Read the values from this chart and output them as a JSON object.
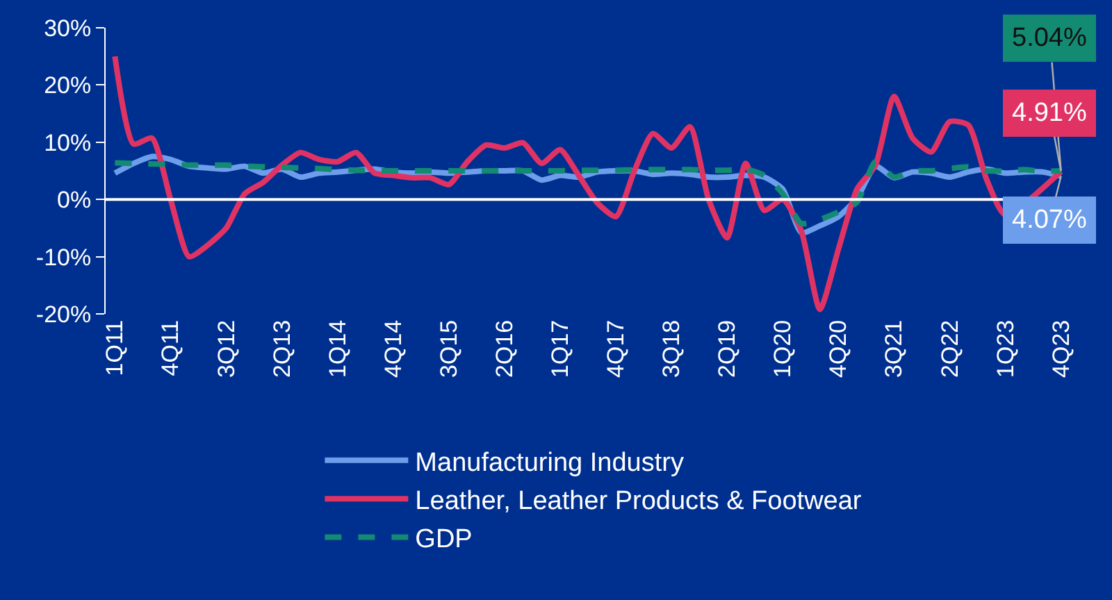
{
  "chart_data": {
    "type": "line",
    "categories": [
      "1Q11",
      null,
      null,
      "4Q11",
      null,
      null,
      "3Q12",
      null,
      null,
      "2Q13",
      null,
      null,
      "1Q14",
      null,
      null,
      "4Q14",
      null,
      null,
      "3Q15",
      null,
      null,
      "2Q16",
      null,
      null,
      "1Q17",
      null,
      null,
      "4Q17",
      null,
      null,
      "3Q18",
      null,
      null,
      "2Q19",
      null,
      null,
      "1Q20",
      null,
      null,
      "4Q20",
      null,
      null,
      "3Q21",
      null,
      null,
      "2Q22",
      null,
      null,
      "1Q23",
      null,
      null,
      "4Q23"
    ],
    "series": [
      {
        "name": "Manufacturing Industry",
        "color": "#6d9eeb",
        "line_style": "solid",
        "values": [
          4.6,
          6.3,
          7.5,
          7,
          5.8,
          5.5,
          5.3,
          5.8,
          4.6,
          5.3,
          3.9,
          4.6,
          4.8,
          5.1,
          5.3,
          4.8,
          4.6,
          4.8,
          4.6,
          4.8,
          5,
          5,
          5,
          3.4,
          4.2,
          3.9,
          4.8,
          5,
          5,
          4.4,
          4.6,
          4.4,
          3.9,
          3.9,
          4.2,
          3.9,
          1.8,
          -5.8,
          -4.6,
          -3,
          0.2,
          5.8,
          3.8,
          4.8,
          4.6,
          3.9,
          4.8,
          5.3,
          4.6,
          4.8,
          4.8,
          4.07
        ]
      },
      {
        "name": "Leather, Leather Products & Footwear",
        "color": "#e03364",
        "line_style": "solid",
        "values": [
          25,
          9.7,
          10.7,
          0,
          -10,
          -8,
          -5,
          1,
          3,
          6,
          8.2,
          7,
          6.6,
          8.2,
          4.6,
          4.2,
          3.8,
          3.8,
          2.6,
          6.6,
          9.5,
          9,
          9.9,
          6.3,
          8.7,
          4.2,
          -0.6,
          -3,
          5,
          11.5,
          9,
          12.7,
          0,
          -6.7,
          6.3,
          -1.9,
          0,
          -5.5,
          -19.2,
          -8.7,
          1.8,
          6,
          18,
          10.7,
          8.3,
          13.6,
          13,
          3.4,
          -2.7,
          null,
          null,
          4.91
        ]
      },
      {
        "name": "GDP",
        "color": "#138a72",
        "line_style": "dashed",
        "values": [
          6.4,
          6.3,
          6.2,
          6.2,
          6,
          6,
          6,
          5.8,
          5.7,
          5.6,
          5.5,
          5.4,
          5.2,
          5.1,
          5,
          5,
          5,
          5,
          5,
          5,
          5,
          5,
          5,
          5,
          5,
          5.1,
          5.1,
          5.1,
          5.2,
          5.2,
          5.2,
          5.2,
          5.1,
          5.1,
          5.3,
          4.2,
          1,
          -4.2,
          -3.5,
          -2.2,
          -0.5,
          6.6,
          3.9,
          5,
          5,
          5.4,
          5.7,
          5,
          5,
          5.2,
          4.9,
          5.04
        ]
      }
    ],
    "ylim": [
      -20,
      30
    ],
    "yticks": [
      {
        "value": -20,
        "label": "-20%"
      },
      {
        "value": -10,
        "label": "-10%"
      },
      {
        "value": 0,
        "label": "0%"
      },
      {
        "value": 10,
        "label": "10%"
      },
      {
        "value": 20,
        "label": "20%"
      },
      {
        "value": 30,
        "label": "30%"
      }
    ],
    "annotations": [
      {
        "text": "5.04%",
        "x": "4Q23",
        "y": 5.04
      },
      {
        "text": "4.91%",
        "x": "4Q23",
        "y": 4.91
      },
      {
        "text": "4.07%",
        "x": "4Q23",
        "y": 4.07
      }
    ],
    "ref_lines": [
      {
        "axis": "y",
        "value": 0,
        "color": "#ffffff"
      }
    ],
    "grid": false,
    "legend": "bottom",
    "marker": "none"
  }
}
